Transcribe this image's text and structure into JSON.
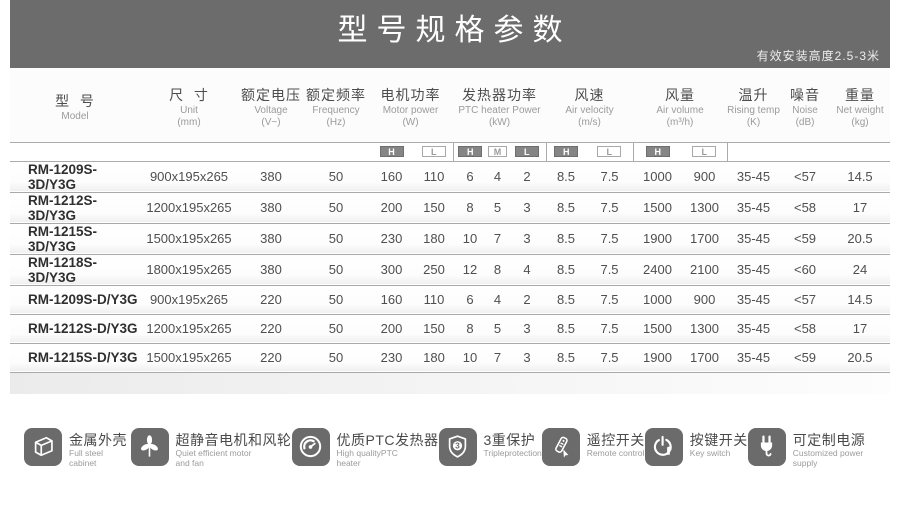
{
  "header": {
    "title": "型号规格参数",
    "subtitle": "有效安装高度2.5-3米"
  },
  "table": {
    "columns": [
      {
        "zh": "型  号",
        "en": "Model",
        "unit": ""
      },
      {
        "zh": "尺  寸",
        "en": "Unit",
        "unit": "(mm)"
      },
      {
        "zh": "额定电压",
        "en": "Voltage",
        "unit": "(V~)"
      },
      {
        "zh": "额定频率",
        "en": "Frequency",
        "unit": "(Hz)"
      },
      {
        "zh": "电机功率",
        "en": "Motor power",
        "unit": "(W)"
      },
      {
        "zh": "发热器功率",
        "en": "PTC heater Power",
        "unit": "(kW)"
      },
      {
        "zh": "风速",
        "en": "Air velocity",
        "unit": "(m/s)"
      },
      {
        "zh": "风量",
        "en": "Air volume",
        "unit": "(m³/h)"
      },
      {
        "zh": "温升",
        "en": "Rising temp",
        "unit": "(K)"
      },
      {
        "zh": "噪音",
        "en": "Noise",
        "unit": "(dB)"
      },
      {
        "zh": "重量",
        "en": "Net weight",
        "unit": "(kg)"
      }
    ],
    "subheaders": {
      "motor": [
        "H",
        "L"
      ],
      "ptc": [
        "H",
        "M",
        "L"
      ],
      "velocity": [
        "H",
        "L"
      ],
      "volume": [
        "H",
        "L"
      ]
    },
    "rows": [
      {
        "model": "RM-1209S-3D/Y3G",
        "size": "900x195x265",
        "voltage": "380",
        "freq": "50",
        "motor_h": "160",
        "motor_l": "110",
        "ptc_h": "6",
        "ptc_m": "4",
        "ptc_l": "2",
        "vel_h": "8.5",
        "vel_l": "7.5",
        "vol_h": "1000",
        "vol_l": "900",
        "rise": "35-45",
        "noise": "<57",
        "weight": "14.5"
      },
      {
        "model": "RM-1212S-3D/Y3G",
        "size": "1200x195x265",
        "voltage": "380",
        "freq": "50",
        "motor_h": "200",
        "motor_l": "150",
        "ptc_h": "8",
        "ptc_m": "5",
        "ptc_l": "3",
        "vel_h": "8.5",
        "vel_l": "7.5",
        "vol_h": "1500",
        "vol_l": "1300",
        "rise": "35-45",
        "noise": "<58",
        "weight": "17"
      },
      {
        "model": "RM-1215S-3D/Y3G",
        "size": "1500x195x265",
        "voltage": "380",
        "freq": "50",
        "motor_h": "230",
        "motor_l": "180",
        "ptc_h": "10",
        "ptc_m": "7",
        "ptc_l": "3",
        "vel_h": "8.5",
        "vel_l": "7.5",
        "vol_h": "1900",
        "vol_l": "1700",
        "rise": "35-45",
        "noise": "<59",
        "weight": "20.5"
      },
      {
        "model": "RM-1218S-3D/Y3G",
        "size": "1800x195x265",
        "voltage": "380",
        "freq": "50",
        "motor_h": "300",
        "motor_l": "250",
        "ptc_h": "12",
        "ptc_m": "8",
        "ptc_l": "4",
        "vel_h": "8.5",
        "vel_l": "7.5",
        "vol_h": "2400",
        "vol_l": "2100",
        "rise": "35-45",
        "noise": "<60",
        "weight": "24"
      },
      {
        "model": "RM-1209S-D/Y3G",
        "size": "900x195x265",
        "voltage": "220",
        "freq": "50",
        "motor_h": "160",
        "motor_l": "110",
        "ptc_h": "6",
        "ptc_m": "4",
        "ptc_l": "2",
        "vel_h": "8.5",
        "vel_l": "7.5",
        "vol_h": "1000",
        "vol_l": "900",
        "rise": "35-45",
        "noise": "<57",
        "weight": "14.5"
      },
      {
        "model": "RM-1212S-D/Y3G",
        "size": "1200x195x265",
        "voltage": "220",
        "freq": "50",
        "motor_h": "200",
        "motor_l": "150",
        "ptc_h": "8",
        "ptc_m": "5",
        "ptc_l": "3",
        "vel_h": "8.5",
        "vel_l": "7.5",
        "vol_h": "1500",
        "vol_l": "1300",
        "rise": "35-45",
        "noise": "<58",
        "weight": "17"
      },
      {
        "model": "RM-1215S-D/Y3G",
        "size": "1500x195x265",
        "voltage": "220",
        "freq": "50",
        "motor_h": "230",
        "motor_l": "180",
        "ptc_h": "10",
        "ptc_m": "7",
        "ptc_l": "3",
        "vel_h": "8.5",
        "vel_l": "7.5",
        "vol_h": "1900",
        "vol_l": "1700",
        "rise": "35-45",
        "noise": "<59",
        "weight": "20.5"
      }
    ]
  },
  "features": [
    {
      "zh": "金属外壳",
      "en": "Full steel cabinet",
      "icon": "cabinet-icon"
    },
    {
      "zh": "超静音电机和风轮",
      "en": "Quiet efficient motor and fan",
      "icon": "fan-icon"
    },
    {
      "zh": "优质PTC发热器",
      "en": "High qualityPTC heater",
      "icon": "gauge-icon"
    },
    {
      "zh": "3重保护",
      "en": "Tripleprotection",
      "icon": "shield-icon"
    },
    {
      "zh": "遥控开关",
      "en": "Remote control",
      "icon": "remote-icon"
    },
    {
      "zh": "按键开关",
      "en": "Key switch",
      "icon": "key-switch-icon"
    },
    {
      "zh": "可定制电源",
      "en": "Customized power supply",
      "icon": "plug-icon"
    }
  ],
  "colors": {
    "band": "#6c6c6c",
    "h_box": "#858585",
    "row_line": "#a9a9a9",
    "text_dark": "#2f2f2f",
    "text_mid": "#4f4f4f",
    "text_light": "#9b9b9b"
  }
}
